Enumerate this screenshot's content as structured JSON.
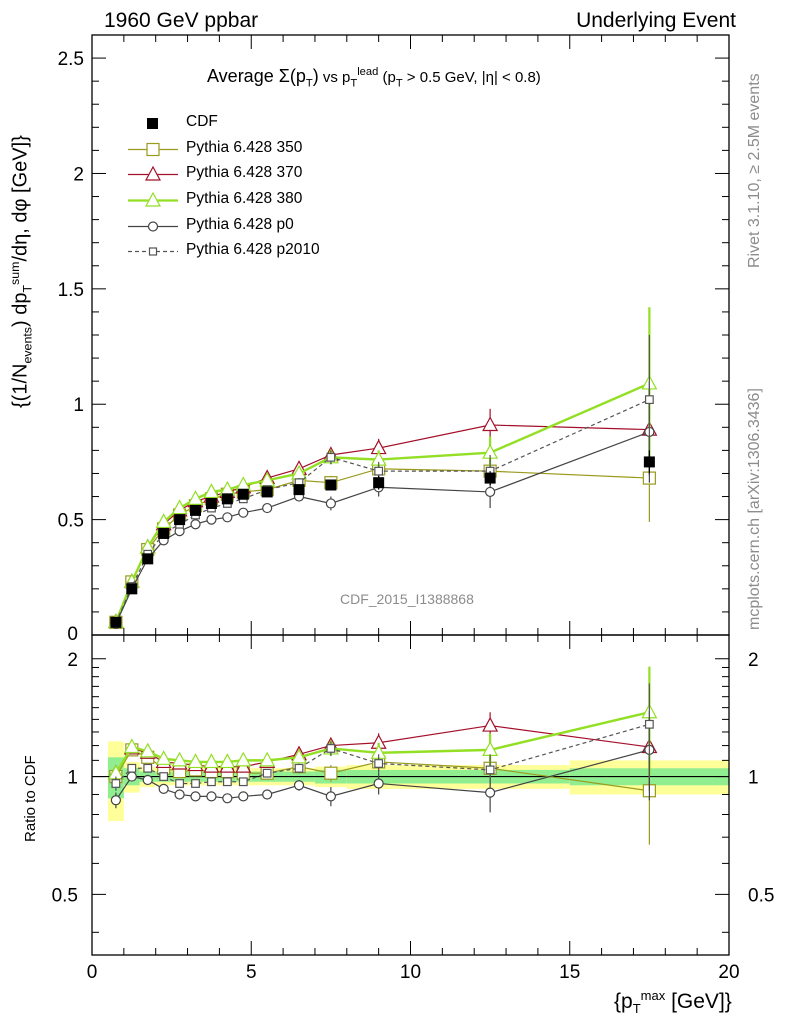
{
  "header": {
    "left": "1960 GeV ppbar",
    "right": "Underlying Event"
  },
  "side_labels": {
    "rivet": "Rivet 3.1.10, ≥ 2.5M events",
    "mcplots": "mcplots.cern.ch [arXiv:1306.3436]"
  },
  "watermark": "CDF_2015_I1388868",
  "plot_title": {
    "prefix": "Average ",
    "sigma": "Σ(p",
    "sigma_sub": "T",
    "sigma_close": ")",
    "mid": " vs p",
    "mid_sub": "T",
    "mid_sup": "lead",
    "cut": " (p",
    "cut_sub": "T",
    "cut_rest": " > 0.5 GeV, |η| < 0.8)"
  },
  "y_title_main": {
    "a": "{(1/N",
    "a_sub": "events",
    "b": ") dp",
    "b_sub": "T",
    "b_sup": "sum",
    "c": "/dη, dφ [GeV]}"
  },
  "y_title_ratio": "Ratio to CDF",
  "x_title": {
    "a": "{p",
    "a_sub": "T",
    "a_sup": "max",
    "b": " [GeV]}"
  },
  "colors": {
    "cdf": "#000000",
    "p350": "#9a9a1e",
    "p370": "#a4102a",
    "p380": "#92df24",
    "p0": "#444444",
    "p2010": "#555555",
    "band_yellow": "#ffff99",
    "band_green": "#90ee90"
  },
  "chart_data": [
    {
      "type": "line",
      "panel": "main",
      "x": [
        0.75,
        1.25,
        1.75,
        2.25,
        2.75,
        3.25,
        3.75,
        4.25,
        4.75,
        5.5,
        6.5,
        7.5,
        9.0,
        12.5,
        17.5
      ],
      "xlim": [
        0,
        20
      ],
      "ylim": [
        0,
        2.6
      ],
      "yticks": [
        "0.5",
        "1",
        "1.5",
        "2",
        "2.5"
      ],
      "xticks": [
        "0",
        "5",
        "10",
        "15",
        "20"
      ],
      "series": [
        {
          "name": "CDF",
          "key": "cdf",
          "marker": "square-filled",
          "values": [
            0.055,
            0.2,
            0.33,
            0.44,
            0.5,
            0.54,
            0.57,
            0.59,
            0.61,
            0.62,
            0.63,
            0.65,
            0.66,
            0.68,
            0.75
          ],
          "errors": [
            0.005,
            0.01,
            0.01,
            0.01,
            0.01,
            0.01,
            0.01,
            0.01,
            0.01,
            0.01,
            0.01,
            0.02,
            0.03,
            0.03,
            0.05
          ]
        },
        {
          "name": "Pythia 6.428 350",
          "key": "p350",
          "marker": "square-open",
          "dashed": false,
          "values": [
            0.055,
            0.23,
            0.37,
            0.46,
            0.52,
            0.56,
            0.59,
            0.61,
            0.62,
            0.63,
            0.67,
            0.66,
            0.72,
            0.71,
            0.68
          ],
          "errors": [
            0.005,
            0.01,
            0.01,
            0.01,
            0.01,
            0.01,
            0.01,
            0.01,
            0.01,
            0.01,
            0.02,
            0.03,
            0.04,
            0.06,
            0.19
          ]
        },
        {
          "name": "Pythia 6.428 370",
          "key": "p370",
          "marker": "triangle-open",
          "dashed": false,
          "values": [
            0.056,
            0.23,
            0.38,
            0.48,
            0.54,
            0.58,
            0.6,
            0.62,
            0.64,
            0.68,
            0.72,
            0.78,
            0.81,
            0.91,
            0.89
          ],
          "errors": [
            0.005,
            0.01,
            0.01,
            0.01,
            0.01,
            0.01,
            0.01,
            0.01,
            0.01,
            0.01,
            0.02,
            0.03,
            0.04,
            0.07,
            0.2
          ]
        },
        {
          "name": "Pythia 6.428 380",
          "key": "p380",
          "marker": "triangle-open",
          "dashed": false,
          "values": [
            0.056,
            0.23,
            0.38,
            0.49,
            0.55,
            0.59,
            0.62,
            0.63,
            0.65,
            0.67,
            0.7,
            0.77,
            0.76,
            0.79,
            1.09
          ],
          "errors": [
            0.005,
            0.01,
            0.01,
            0.01,
            0.01,
            0.01,
            0.01,
            0.01,
            0.01,
            0.01,
            0.02,
            0.03,
            0.04,
            0.07,
            0.33
          ]
        },
        {
          "name": "Pythia 6.428 p0",
          "key": "p0",
          "marker": "circle-open",
          "dashed": false,
          "values": [
            0.048,
            0.2,
            0.33,
            0.41,
            0.45,
            0.48,
            0.5,
            0.51,
            0.53,
            0.55,
            0.6,
            0.57,
            0.64,
            0.62,
            0.88
          ],
          "errors": [
            0.005,
            0.01,
            0.01,
            0.01,
            0.01,
            0.01,
            0.01,
            0.01,
            0.01,
            0.01,
            0.02,
            0.03,
            0.04,
            0.07,
            0.22
          ]
        },
        {
          "name": "Pythia 6.428 p2010",
          "key": "p2010",
          "marker": "square-open-small",
          "dashed": true,
          "values": [
            0.053,
            0.21,
            0.35,
            0.44,
            0.48,
            0.52,
            0.55,
            0.57,
            0.59,
            0.63,
            0.66,
            0.77,
            0.71,
            0.71,
            1.02
          ],
          "errors": [
            0.005,
            0.01,
            0.01,
            0.01,
            0.01,
            0.01,
            0.01,
            0.01,
            0.01,
            0.01,
            0.02,
            0.03,
            0.04,
            0.07,
            0.28
          ]
        }
      ]
    },
    {
      "type": "line",
      "panel": "ratio",
      "xlim": [
        0,
        20
      ],
      "ylim": [
        0.35,
        2.3
      ],
      "yscale": "log",
      "yticks": [
        "0.5",
        "1",
        "2"
      ],
      "reference_line": 1,
      "uncertainty_bands": {
        "x_edges": [
          0.5,
          1.0,
          1.5,
          2.0,
          2.5,
          3.0,
          3.5,
          4.0,
          4.5,
          5.0,
          6.0,
          7.0,
          8.0,
          10.0,
          15.0,
          20.0
        ],
        "yellow_half_width": [
          0.23,
          0.09,
          0.06,
          0.05,
          0.05,
          0.05,
          0.05,
          0.05,
          0.05,
          0.05,
          0.05,
          0.06,
          0.07,
          0.07,
          0.1
        ],
        "green_half_width": [
          0.12,
          0.05,
          0.03,
          0.03,
          0.03,
          0.03,
          0.03,
          0.03,
          0.03,
          0.03,
          0.03,
          0.04,
          0.04,
          0.04,
          0.05
        ]
      },
      "series": [
        {
          "key": "p350",
          "values": [
            1.0,
            1.17,
            1.12,
            1.05,
            1.03,
            1.04,
            1.03,
            1.03,
            1.02,
            1.02,
            1.06,
            1.02,
            1.09,
            1.05,
            0.92
          ],
          "errors": [
            0.04,
            0.02,
            0.02,
            0.02,
            0.02,
            0.02,
            0.02,
            0.02,
            0.02,
            0.02,
            0.03,
            0.05,
            0.06,
            0.09,
            0.25
          ]
        },
        {
          "key": "p370",
          "values": [
            1.02,
            1.18,
            1.15,
            1.09,
            1.08,
            1.07,
            1.06,
            1.06,
            1.06,
            1.09,
            1.14,
            1.2,
            1.22,
            1.35,
            1.19
          ],
          "errors": [
            0.04,
            0.02,
            0.02,
            0.02,
            0.02,
            0.02,
            0.02,
            0.02,
            0.02,
            0.02,
            0.03,
            0.05,
            0.07,
            0.11,
            0.27
          ]
        },
        {
          "key": "p380",
          "values": [
            1.02,
            1.19,
            1.16,
            1.11,
            1.1,
            1.09,
            1.09,
            1.09,
            1.1,
            1.1,
            1.12,
            1.18,
            1.15,
            1.17,
            1.46
          ],
          "errors": [
            0.04,
            0.02,
            0.02,
            0.02,
            0.02,
            0.02,
            0.02,
            0.02,
            0.02,
            0.02,
            0.03,
            0.05,
            0.07,
            0.12,
            0.45
          ]
        },
        {
          "key": "p0",
          "values": [
            0.87,
            1.0,
            0.98,
            0.93,
            0.9,
            0.89,
            0.89,
            0.88,
            0.89,
            0.9,
            0.95,
            0.89,
            0.96,
            0.91,
            1.17
          ],
          "errors": [
            0.04,
            0.02,
            0.02,
            0.02,
            0.02,
            0.02,
            0.02,
            0.02,
            0.02,
            0.02,
            0.03,
            0.05,
            0.06,
            0.1,
            0.3
          ]
        },
        {
          "key": "p2010",
          "values": [
            0.96,
            1.05,
            1.05,
            1.0,
            0.96,
            0.96,
            0.97,
            0.97,
            0.97,
            1.02,
            1.05,
            1.18,
            1.08,
            1.04,
            1.36
          ],
          "errors": [
            0.04,
            0.02,
            0.02,
            0.02,
            0.02,
            0.02,
            0.02,
            0.02,
            0.02,
            0.02,
            0.03,
            0.05,
            0.06,
            0.1,
            0.37
          ]
        }
      ]
    }
  ]
}
